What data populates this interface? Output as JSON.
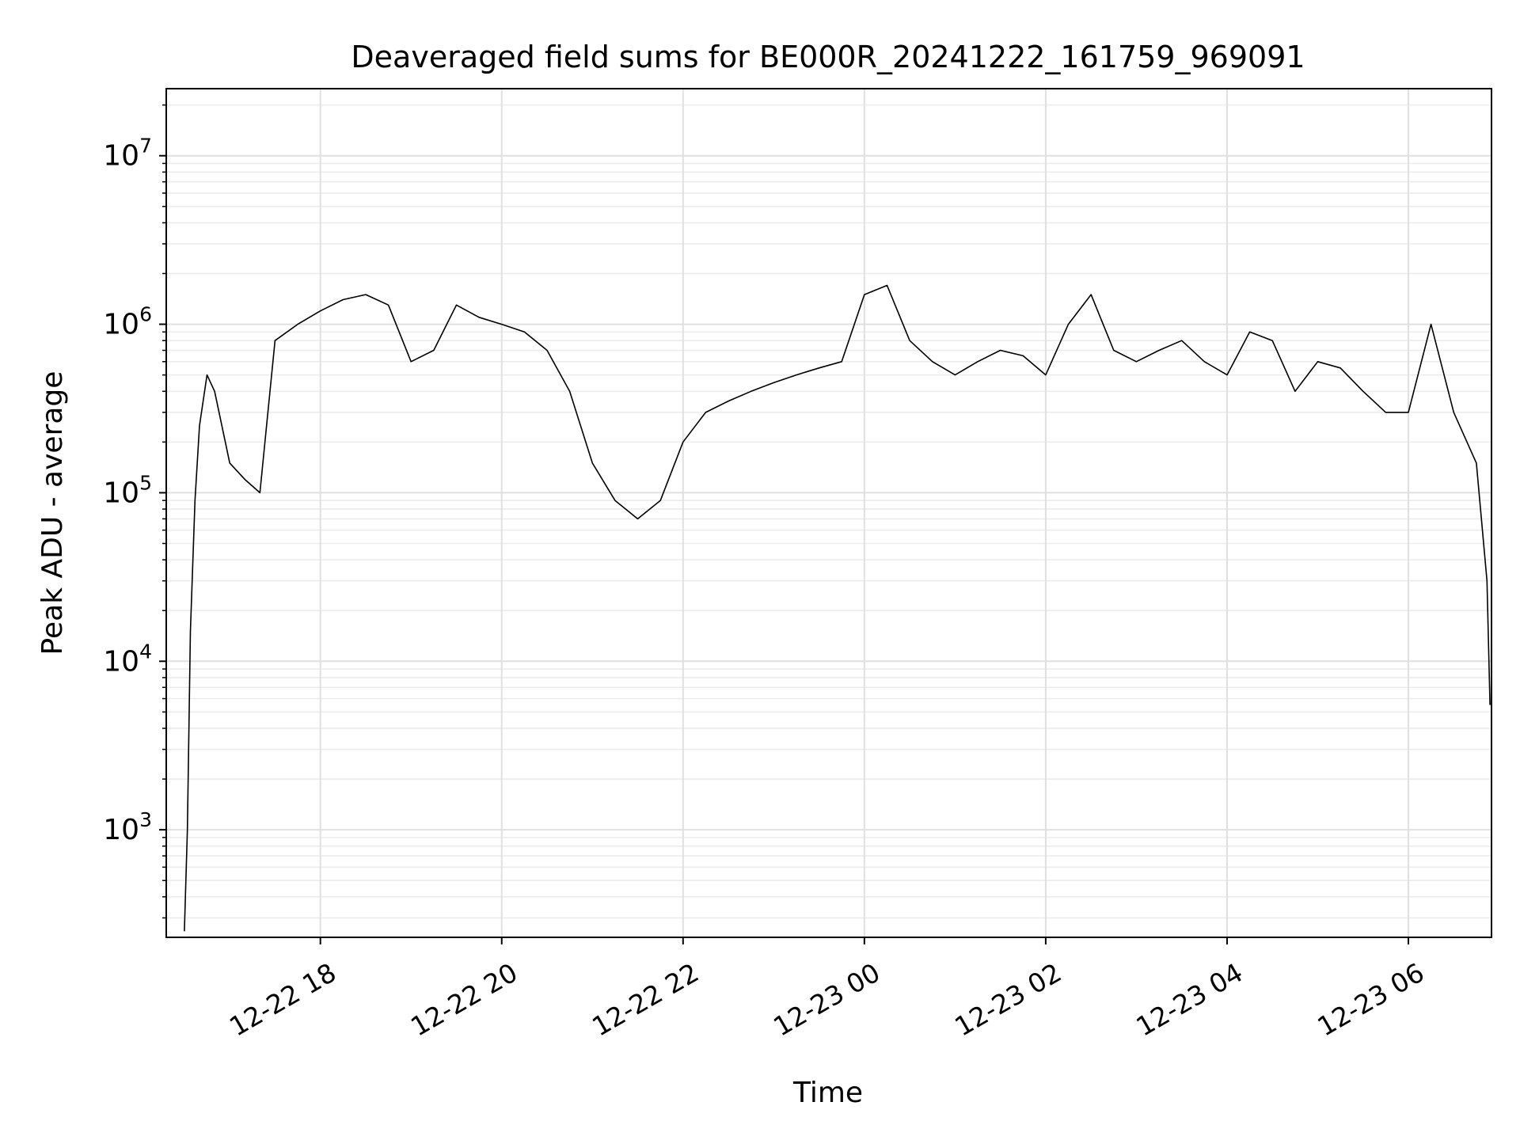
{
  "chart_data": {
    "type": "line",
    "title": "Deaveraged field sums for BE000R_20241222_161759_969091",
    "xlabel": "Time",
    "ylabel": "Peak ADU - average",
    "x_range": [
      "2024-12-22 16:18",
      "2024-12-23 06:55"
    ],
    "y_range": [
      230,
      25000000
    ],
    "y_scale": "log",
    "grid": true,
    "line_color": "#000000",
    "x_ticks": [
      {
        "value": "2024-12-22 18:00",
        "label": "12-22 18"
      },
      {
        "value": "2024-12-22 20:00",
        "label": "12-22 20"
      },
      {
        "value": "2024-12-22 22:00",
        "label": "12-22 22"
      },
      {
        "value": "2024-12-23 00:00",
        "label": "12-23 00"
      },
      {
        "value": "2024-12-23 02:00",
        "label": "12-23 02"
      },
      {
        "value": "2024-12-23 04:00",
        "label": "12-23 04"
      },
      {
        "value": "2024-12-23 06:00",
        "label": "12-23 06"
      }
    ],
    "y_ticks": [
      {
        "value": 1000,
        "base": "10",
        "exp": "3"
      },
      {
        "value": 10000,
        "base": "10",
        "exp": "4"
      },
      {
        "value": 100000,
        "base": "10",
        "exp": "5"
      },
      {
        "value": 1000000,
        "base": "10",
        "exp": "6"
      },
      {
        "value": 10000000,
        "base": "10",
        "exp": "7"
      }
    ],
    "series": [
      {
        "x": [
          "2024-12-22 16:30",
          "2024-12-22 16:32",
          "2024-12-22 16:34",
          "2024-12-22 16:37",
          "2024-12-22 16:40",
          "2024-12-22 16:45",
          "2024-12-22 16:50",
          "2024-12-22 17:00",
          "2024-12-22 17:10",
          "2024-12-22 17:20",
          "2024-12-22 17:30",
          "2024-12-22 17:45",
          "2024-12-22 18:00",
          "2024-12-22 18:15",
          "2024-12-22 18:30",
          "2024-12-22 18:45",
          "2024-12-22 19:00",
          "2024-12-22 19:15",
          "2024-12-22 19:30",
          "2024-12-22 19:45",
          "2024-12-22 20:00",
          "2024-12-22 20:15",
          "2024-12-22 20:30",
          "2024-12-22 20:45",
          "2024-12-22 21:00",
          "2024-12-22 21:15",
          "2024-12-22 21:30",
          "2024-12-22 21:45",
          "2024-12-22 22:00",
          "2024-12-22 22:15",
          "2024-12-22 22:30",
          "2024-12-22 22:45",
          "2024-12-22 23:00",
          "2024-12-22 23:15",
          "2024-12-22 23:30",
          "2024-12-22 23:45",
          "2024-12-23 00:00",
          "2024-12-23 00:15",
          "2024-12-23 00:30",
          "2024-12-23 00:45",
          "2024-12-23 01:00",
          "2024-12-23 01:15",
          "2024-12-23 01:30",
          "2024-12-23 01:45",
          "2024-12-23 02:00",
          "2024-12-23 02:15",
          "2024-12-23 02:30",
          "2024-12-23 02:45",
          "2024-12-23 03:00",
          "2024-12-23 03:15",
          "2024-12-23 03:30",
          "2024-12-23 03:45",
          "2024-12-23 04:00",
          "2024-12-23 04:15",
          "2024-12-23 04:30",
          "2024-12-23 04:45",
          "2024-12-23 05:00",
          "2024-12-23 05:15",
          "2024-12-23 05:30",
          "2024-12-23 05:45",
          "2024-12-23 06:00",
          "2024-12-23 06:15",
          "2024-12-23 06:30",
          "2024-12-23 06:45",
          "2024-12-23 06:52",
          "2024-12-23 06:54"
        ],
        "values": [
          250,
          1000,
          15000,
          90000,
          250000,
          500000,
          400000,
          150000,
          120000,
          100000,
          800000,
          1000000,
          1200000,
          1400000,
          1500000,
          1300000,
          600000,
          700000,
          1300000,
          1100000,
          1000000,
          900000,
          700000,
          400000,
          150000,
          90000,
          70000,
          90000,
          200000,
          300000,
          350000,
          400000,
          450000,
          500000,
          550000,
          600000,
          1500000,
          1700000,
          800000,
          600000,
          500000,
          600000,
          700000,
          650000,
          500000,
          1000000,
          1500000,
          700000,
          600000,
          700000,
          800000,
          600000,
          500000,
          900000,
          800000,
          400000,
          600000,
          550000,
          400000,
          300000,
          300000,
          1000000,
          300000,
          150000,
          30000,
          5500
        ]
      }
    ]
  }
}
